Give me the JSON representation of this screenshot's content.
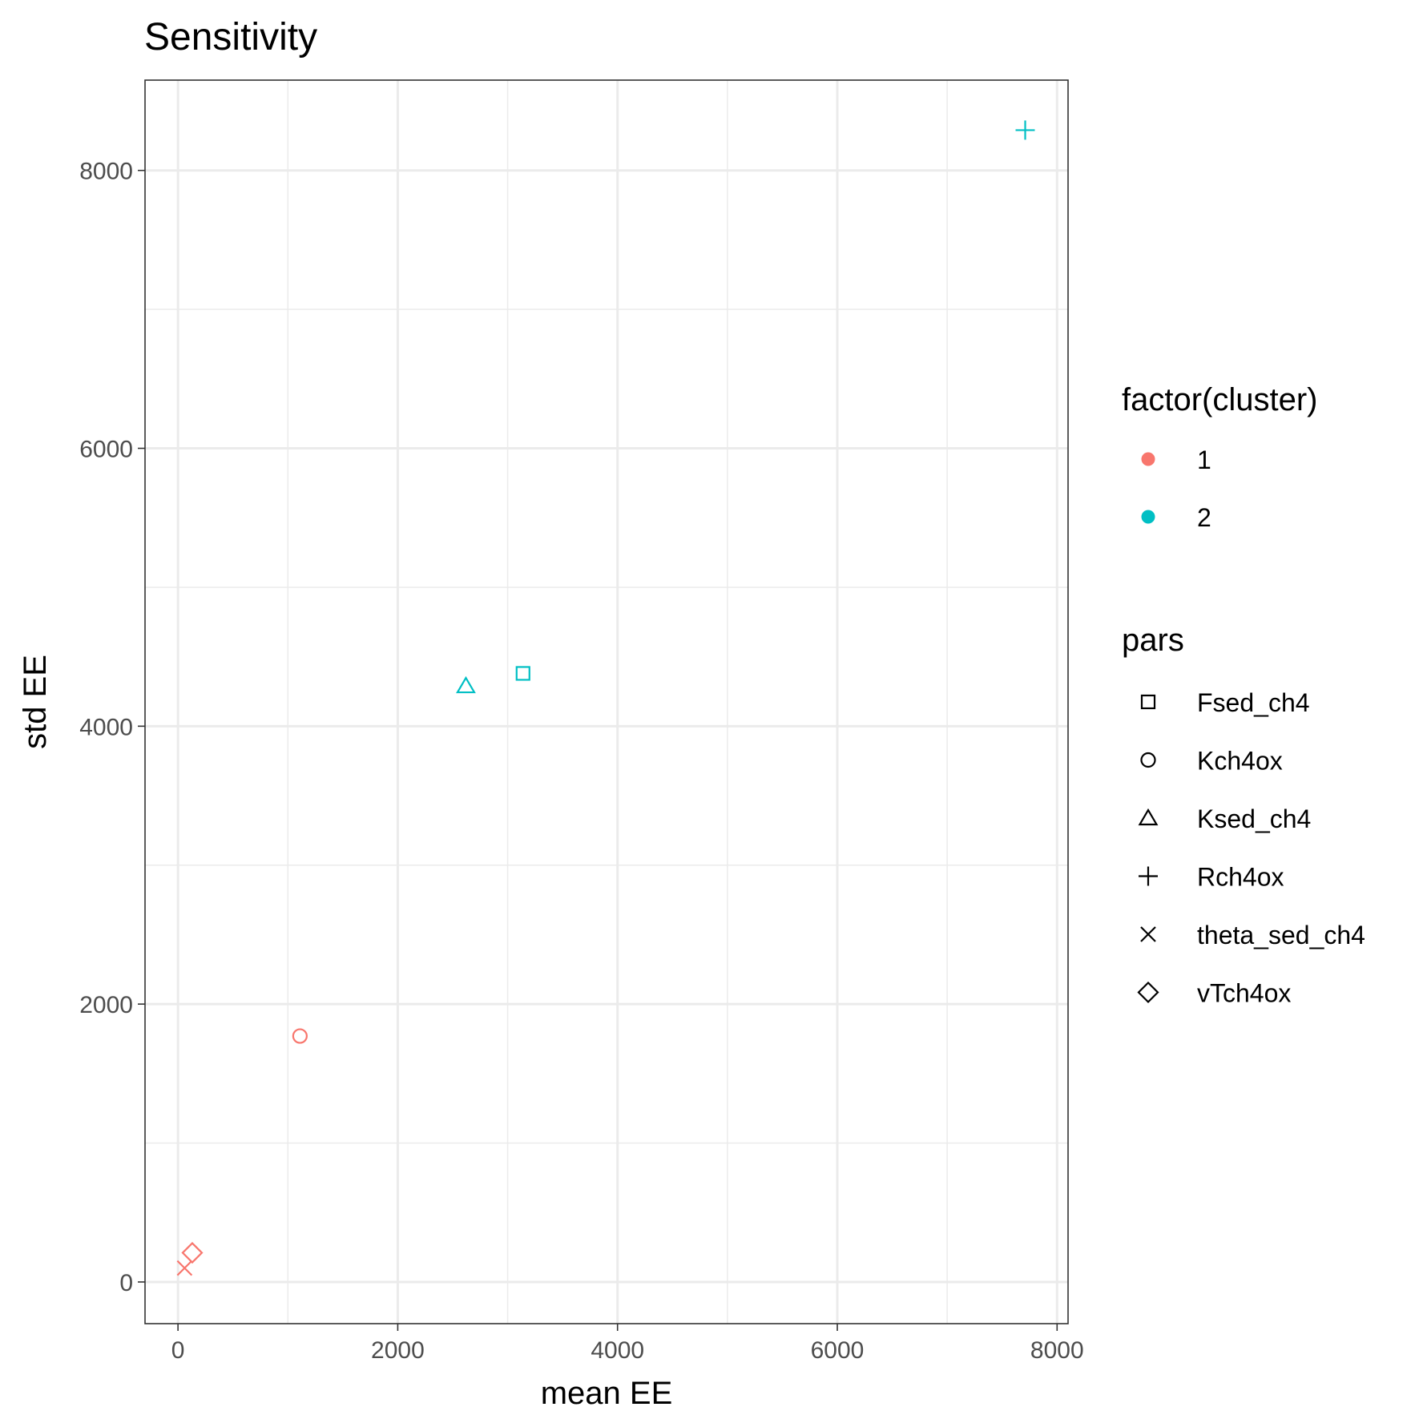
{
  "chart_data": {
    "type": "scatter",
    "title": "Sensitivity",
    "xlabel": "mean EE",
    "ylabel": "std EE",
    "xlim": [
      -300,
      8100
    ],
    "ylim": [
      -300,
      8650
    ],
    "x_ticks": [
      0,
      2000,
      4000,
      6000,
      8000
    ],
    "x_minor_ticks": [
      1000,
      3000,
      5000,
      7000
    ],
    "y_ticks": [
      0,
      2000,
      4000,
      6000,
      8000
    ],
    "y_minor_ticks": [
      1000,
      3000,
      5000,
      7000
    ],
    "grid": true,
    "legend_position": "right",
    "colors": {
      "1": "#F8766D",
      "2": "#00BFC4"
    },
    "points": [
      {
        "pars": "Fsed_ch4",
        "cluster": "2",
        "x": 3140,
        "y": 4380
      },
      {
        "pars": "Kch4ox",
        "cluster": "1",
        "x": 1110,
        "y": 1770
      },
      {
        "pars": "Ksed_ch4",
        "cluster": "2",
        "x": 2620,
        "y": 4290
      },
      {
        "pars": "Rch4ox",
        "cluster": "2",
        "x": 7710,
        "y": 8290
      },
      {
        "pars": "theta_sed_ch4",
        "cluster": "1",
        "x": 60,
        "y": 100
      },
      {
        "pars": "vTch4ox",
        "cluster": "1",
        "x": 130,
        "y": 210
      }
    ],
    "legends": [
      {
        "title": "factor(cluster)",
        "items": [
          {
            "label": "1",
            "color": "#F8766D",
            "shape": "circle-filled"
          },
          {
            "label": "2",
            "color": "#00BFC4",
            "shape": "circle-filled"
          }
        ]
      },
      {
        "title": "pars",
        "items": [
          {
            "label": "Fsed_ch4",
            "shape": "square"
          },
          {
            "label": "Kch4ox",
            "shape": "circle"
          },
          {
            "label": "Ksed_ch4",
            "shape": "triangle"
          },
          {
            "label": "Rch4ox",
            "shape": "plus"
          },
          {
            "label": "theta_sed_ch4",
            "shape": "cross"
          },
          {
            "label": "vTch4ox",
            "shape": "diamond"
          }
        ]
      }
    ]
  }
}
